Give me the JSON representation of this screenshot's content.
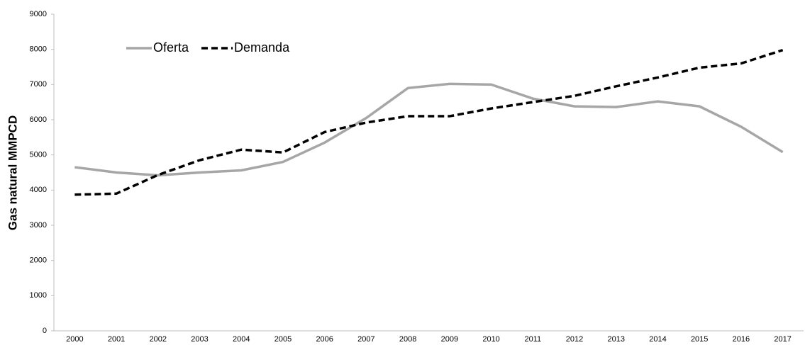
{
  "chart_data": {
    "type": "line",
    "y_label": "Gas natural MMPCD",
    "categories": [
      "2000",
      "2001",
      "2002",
      "2003",
      "2004",
      "2005",
      "2006",
      "2007",
      "2008",
      "2009",
      "2010",
      "2011",
      "2012",
      "2013",
      "2014",
      "2015",
      "2016",
      "2017"
    ],
    "series": [
      {
        "name": "Oferta",
        "color": "#a6a6a6",
        "dash": "solid",
        "values": [
          4650,
          4500,
          4420,
          4500,
          4560,
          4800,
          5350,
          6050,
          6900,
          7020,
          7000,
          6600,
          6380,
          6360,
          6520,
          6380,
          5800,
          5080
        ]
      },
      {
        "name": "Demanda",
        "color": "#000000",
        "dash": "dashed",
        "values": [
          3870,
          3900,
          4430,
          4850,
          5150,
          5070,
          5650,
          5920,
          6100,
          6100,
          6320,
          6500,
          6680,
          6950,
          7200,
          7480,
          7600,
          7980
        ]
      }
    ],
    "ylim": [
      0,
      9000
    ],
    "yticks": [
      0,
      1000,
      2000,
      3000,
      4000,
      5000,
      6000,
      7000,
      8000,
      9000
    ],
    "grid": false,
    "legend": "upper left"
  }
}
